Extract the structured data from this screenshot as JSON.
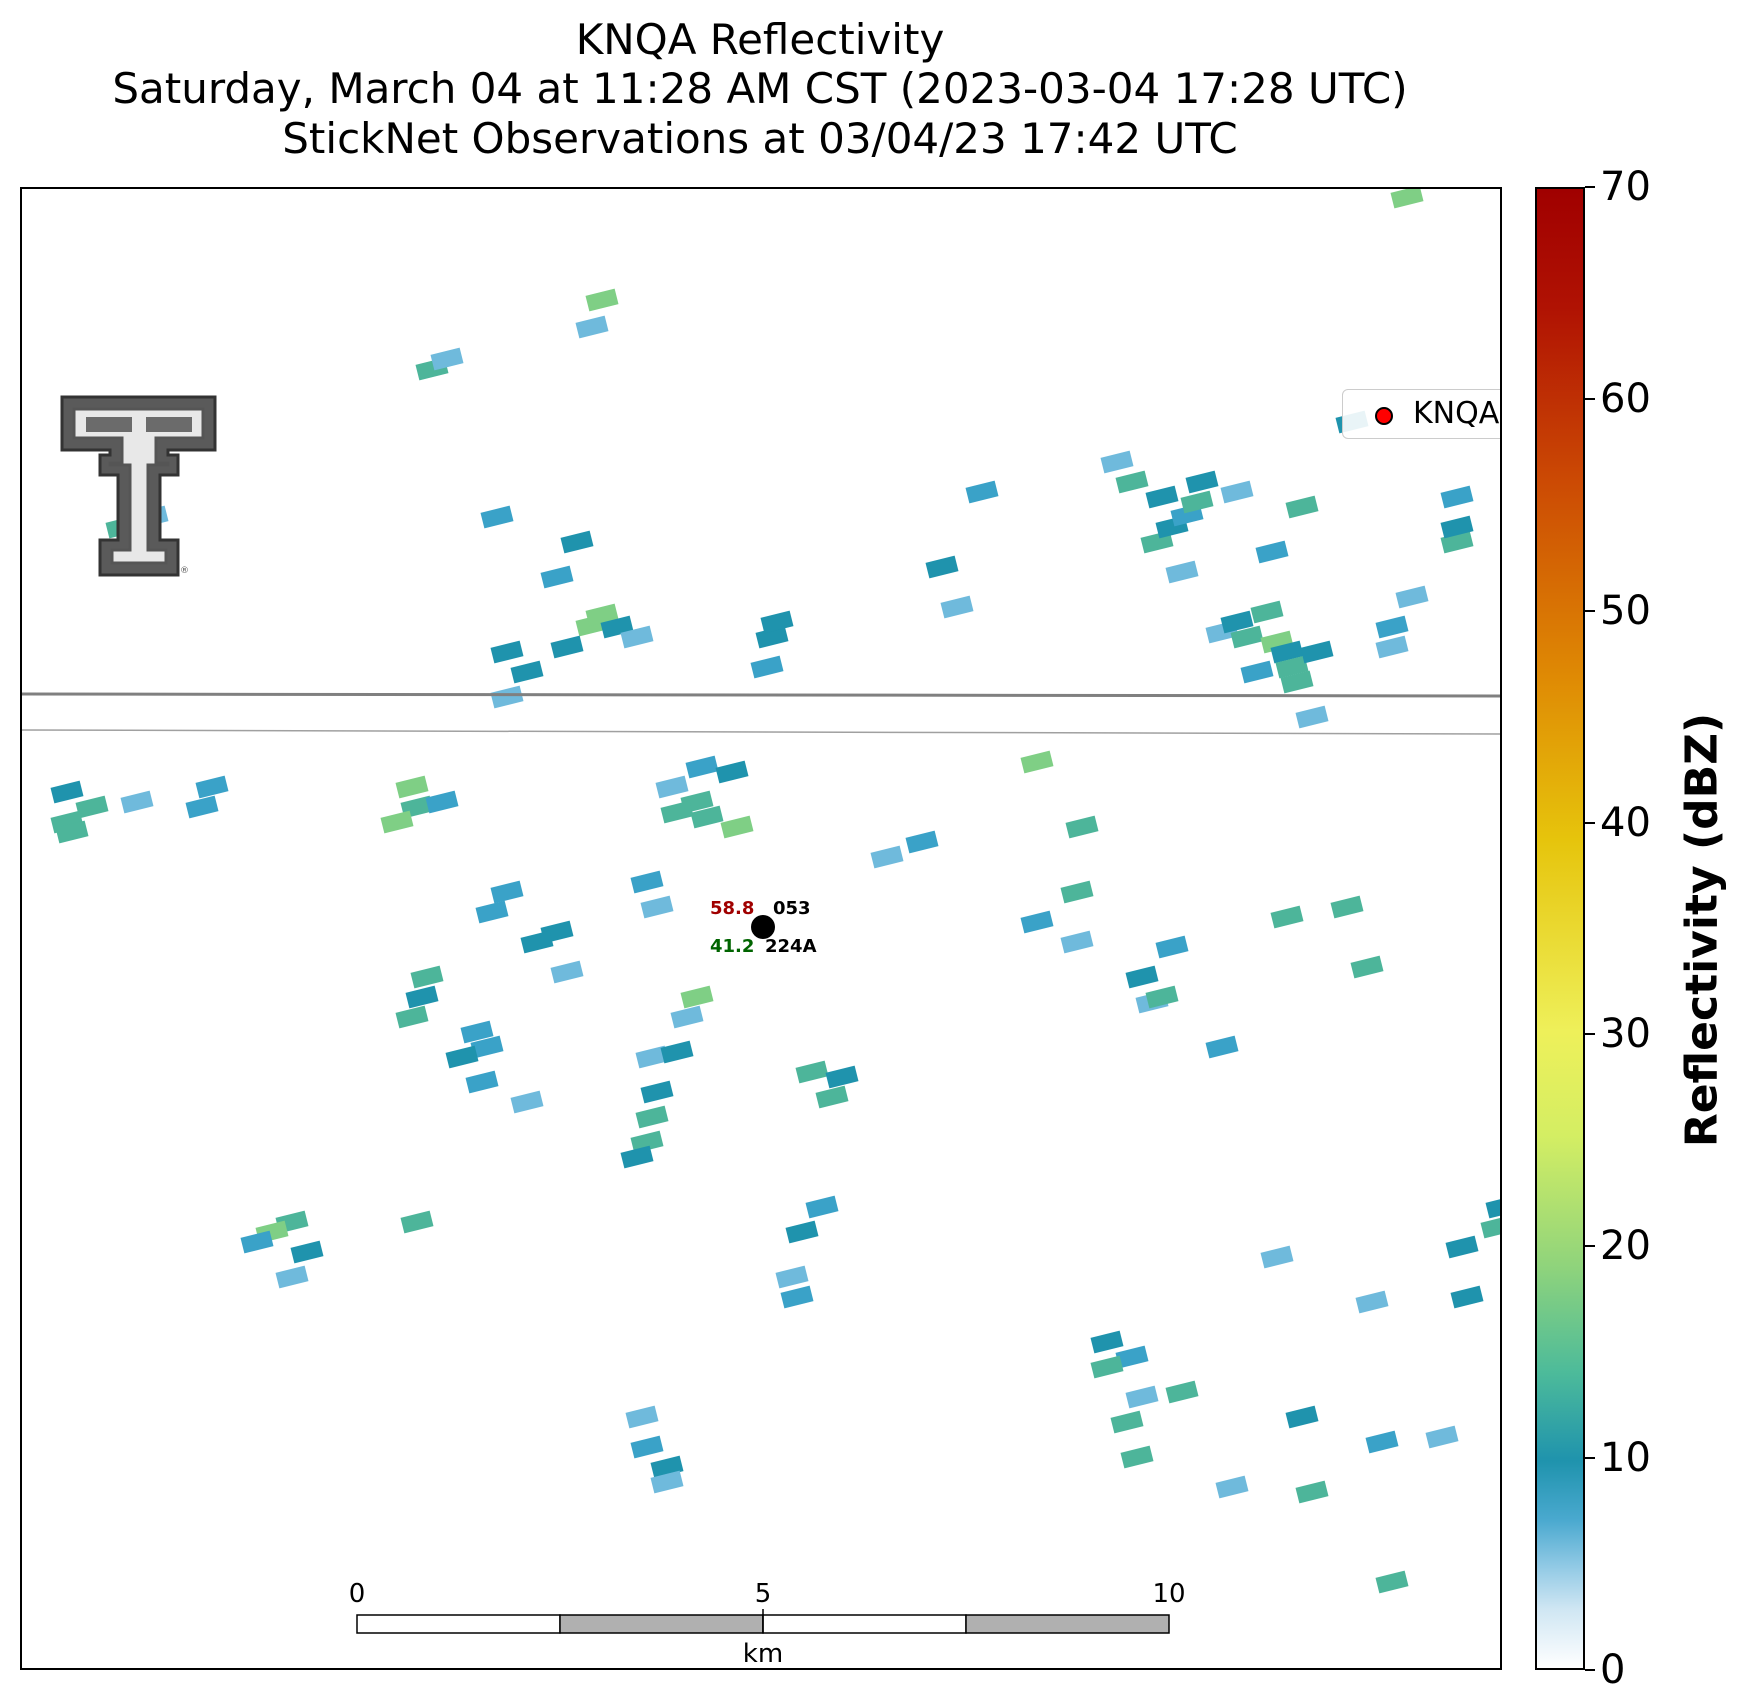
{
  "header": {
    "title": "KNQA Reflectivity",
    "subtitle": "Saturday, March 04 at 11:28 AM CST (2023-03-04 17:28 UTC)",
    "subtitle2": "StickNet Observations at 03/04/23 17:42 UTC"
  },
  "legend": {
    "label": "KNQA",
    "marker_color": "#ff0000"
  },
  "logo": {
    "name": "texas-tech-double-t-logo",
    "text": "TT"
  },
  "scale_bar": {
    "ticks": [
      "0",
      "5",
      "10"
    ],
    "unit": "km"
  },
  "station": {
    "id_top": "053",
    "id_bottom": "224A",
    "value_top": "58.8",
    "value_bottom": "41.2",
    "value_top_color": "#a00000",
    "value_bottom_color": "#006400"
  },
  "colorbar": {
    "title": "Reflectivity (dBZ)",
    "ticks": [
      "0",
      "10",
      "20",
      "30",
      "40",
      "50",
      "60",
      "70"
    ],
    "range": [
      0,
      70
    ]
  }
}
